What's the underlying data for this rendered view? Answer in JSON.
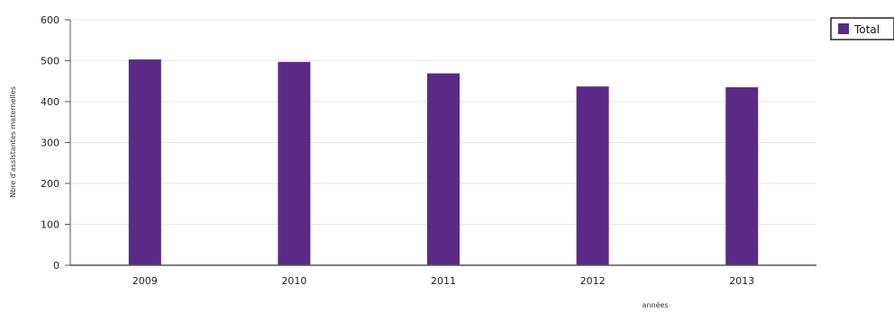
{
  "chart_data": {
    "type": "bar",
    "title": "",
    "xlabel": "années",
    "ylabel": "Nbre d'assistantes maternelles",
    "categories": [
      "2009",
      "2010",
      "2011",
      "2012",
      "2013"
    ],
    "series": [
      {
        "name": "Total",
        "values": [
          503,
          497,
          469,
          437,
          435
        ]
      }
    ],
    "ylim": [
      0,
      600
    ],
    "yticks": [
      0,
      100,
      200,
      300,
      400,
      500,
      600
    ],
    "grid": true,
    "legend": "top-right",
    "colors": {
      "bar": "#5b2a86",
      "grid": "#e6e6e6",
      "axis": "#555555"
    }
  }
}
